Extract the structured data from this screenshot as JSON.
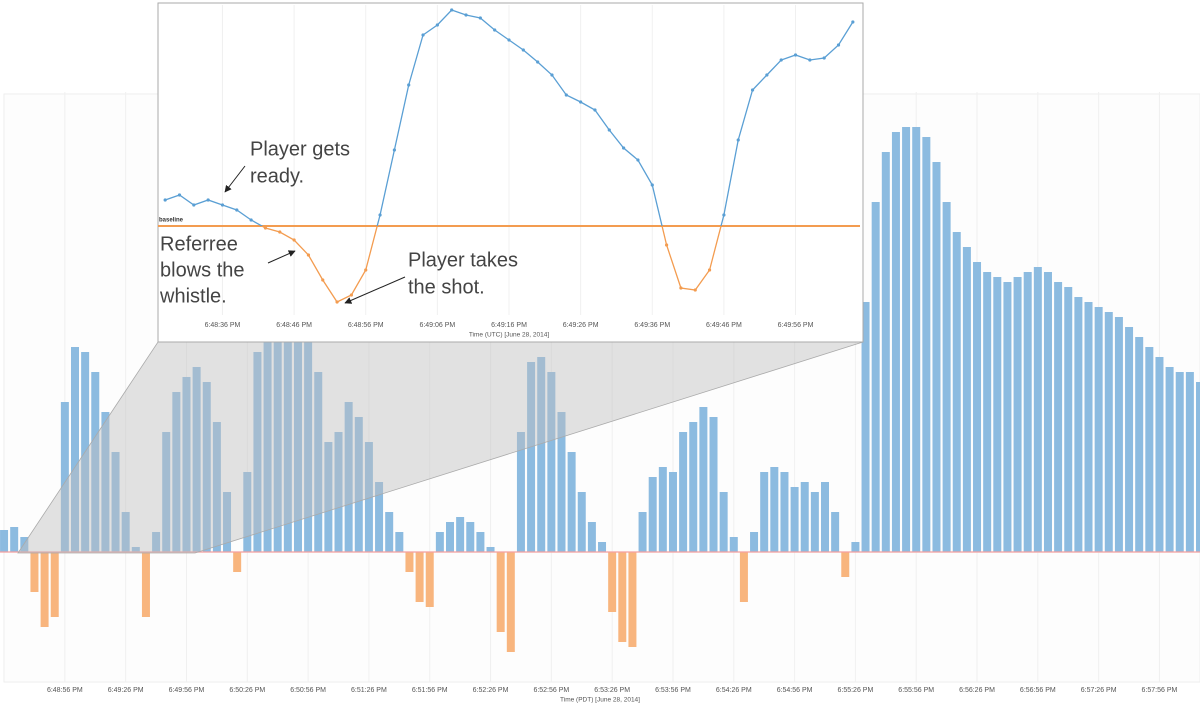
{
  "chart_data": [
    {
      "type": "bar",
      "xlabel": "Time (PDT) [June 28, 2014]",
      "color": "#8cbbe0",
      "negative_color": "#f8b57e",
      "zero_line_color": "#f4a0a0",
      "grid": true,
      "xlim": [
        67704,
        68296
      ],
      "ylim": [
        -130,
        460
      ],
      "xticks": [
        {
          "value": 67736,
          "label": "6:48:56 PM"
        },
        {
          "value": 67766,
          "label": "6:49:26 PM"
        },
        {
          "value": 67796,
          "label": "6:49:56 PM"
        },
        {
          "value": 67826,
          "label": "6:50:26 PM"
        },
        {
          "value": 67856,
          "label": "6:50:56 PM"
        },
        {
          "value": 67886,
          "label": "6:51:26 PM"
        },
        {
          "value": 67916,
          "label": "6:51:56 PM"
        },
        {
          "value": 67946,
          "label": "6:52:26 PM"
        },
        {
          "value": 67976,
          "label": "6:52:56 PM"
        },
        {
          "value": 68006,
          "label": "6:53:26 PM"
        },
        {
          "value": 68036,
          "label": "6:53:56 PM"
        },
        {
          "value": 68066,
          "label": "6:54:26 PM"
        },
        {
          "value": 68096,
          "label": "6:54:56 PM"
        },
        {
          "value": 68126,
          "label": "6:55:26 PM"
        },
        {
          "value": 68156,
          "label": "6:55:56 PM"
        },
        {
          "value": 68186,
          "label": "6:56:26 PM"
        },
        {
          "value": 68216,
          "label": "6:56:56 PM"
        },
        {
          "value": 68246,
          "label": "6:57:26 PM"
        },
        {
          "value": 68276,
          "label": "6:57:56 PM"
        }
      ],
      "x": [
        67706,
        67711,
        67716,
        67721,
        67726,
        67731,
        67736,
        67741,
        67746,
        67751,
        67756,
        67761,
        67766,
        67771,
        67776,
        67781,
        67786,
        67791,
        67796,
        67801,
        67806,
        67811,
        67816,
        67821,
        67826,
        67831,
        67836,
        67841,
        67846,
        67851,
        67856,
        67861,
        67866,
        67871,
        67876,
        67881,
        67886,
        67891,
        67896,
        67901,
        67906,
        67911,
        67916,
        67921,
        67926,
        67931,
        67936,
        67941,
        67946,
        67951,
        67956,
        67961,
        67966,
        67971,
        67976,
        67981,
        67986,
        67991,
        67996,
        68001,
        68006,
        68011,
        68016,
        68021,
        68026,
        68031,
        68036,
        68041,
        68046,
        68051,
        68056,
        68061,
        68066,
        68071,
        68076,
        68081,
        68086,
        68091,
        68096,
        68101,
        68106,
        68111,
        68116,
        68121,
        68126,
        68131,
        68136,
        68141,
        68146,
        68151,
        68156,
        68161,
        68166,
        68171,
        68176,
        68181,
        68186,
        68191,
        68196,
        68201,
        68206,
        68211,
        68216,
        68221,
        68226,
        68231,
        68236,
        68241,
        68246,
        68251,
        68256,
        68261,
        68266,
        68271,
        68276,
        68281,
        68286,
        68291,
        68296
      ],
      "values": [
        22,
        25,
        15,
        -40,
        -75,
        -65,
        150,
        205,
        200,
        180,
        140,
        100,
        40,
        5,
        -65,
        20,
        120,
        160,
        175,
        185,
        170,
        130,
        60,
        -20,
        80,
        200,
        215,
        215,
        215,
        215,
        215,
        180,
        110,
        120,
        150,
        135,
        110,
        70,
        40,
        20,
        -20,
        -50,
        -55,
        20,
        30,
        35,
        30,
        20,
        5,
        -80,
        -100,
        120,
        190,
        195,
        180,
        140,
        100,
        60,
        30,
        10,
        -60,
        -90,
        -95,
        40,
        75,
        85,
        80,
        120,
        130,
        145,
        135,
        60,
        15,
        -50,
        20,
        80,
        85,
        80,
        65,
        70,
        60,
        70,
        40,
        -25,
        10,
        250,
        350,
        400,
        420,
        425,
        425,
        415,
        390,
        350,
        320,
        305,
        290,
        280,
        275,
        270,
        275,
        280,
        285,
        280,
        270,
        265,
        255,
        250,
        245,
        240,
        235,
        225,
        215,
        205,
        195,
        185,
        180,
        180,
        170
      ]
    },
    {
      "type": "line",
      "xlabel": "Time (UTC) [June 28, 2014]",
      "color": "#5a9fd4",
      "below_color": "#f39c50",
      "baseline_color": "#f39c50",
      "baseline_label": "baseline",
      "baseline": 0,
      "xlim": [
        67707,
        67805
      ],
      "ylim": [
        -89,
        221
      ],
      "xticks": [
        {
          "value": 67716,
          "label": "6:48:36 PM"
        },
        {
          "value": 67726,
          "label": "6:48:46 PM"
        },
        {
          "value": 67736,
          "label": "6:48:56 PM"
        },
        {
          "value": 67746,
          "label": "6:49:06 PM"
        },
        {
          "value": 67756,
          "label": "6:49:16 PM"
        },
        {
          "value": 67766,
          "label": "6:49:26 PM"
        },
        {
          "value": 67776,
          "label": "6:49:36 PM"
        },
        {
          "value": 67786,
          "label": "6:49:46 PM"
        },
        {
          "value": 67796,
          "label": "6:49:56 PM"
        }
      ],
      "x": [
        67708,
        67710,
        67712,
        67714,
        67716,
        67718,
        67720,
        67722,
        67724,
        67726,
        67728,
        67730,
        67732,
        67734,
        67736,
        67738,
        67740,
        67742,
        67744,
        67746,
        67748,
        67750,
        67752,
        67754,
        67756,
        67758,
        67760,
        67762,
        67764,
        67766,
        67768,
        67770,
        67772,
        67774,
        67776,
        67778,
        67780,
        67782,
        67784,
        67786,
        67788,
        67790,
        67792,
        67794,
        67796,
        67798,
        67800,
        67802,
        67804
      ],
      "values": [
        26,
        31,
        21,
        26,
        21,
        16,
        6,
        -2,
        -6,
        -14,
        -29,
        -54,
        -76,
        -69,
        -44,
        11,
        76,
        141,
        191,
        201,
        216,
        211,
        208,
        196,
        186,
        176,
        164,
        151,
        131,
        124,
        116,
        96,
        78,
        66,
        41,
        -19,
        -62,
        -64,
        -44,
        11,
        86,
        136,
        151,
        166,
        171,
        166,
        168,
        181,
        204
      ],
      "annotations": [
        {
          "lines": [
            "Player gets",
            "ready."
          ]
        },
        {
          "lines": [
            "Referree",
            "blows the",
            "whistle."
          ]
        },
        {
          "lines": [
            "Player takes",
            "the shot."
          ]
        }
      ]
    }
  ]
}
